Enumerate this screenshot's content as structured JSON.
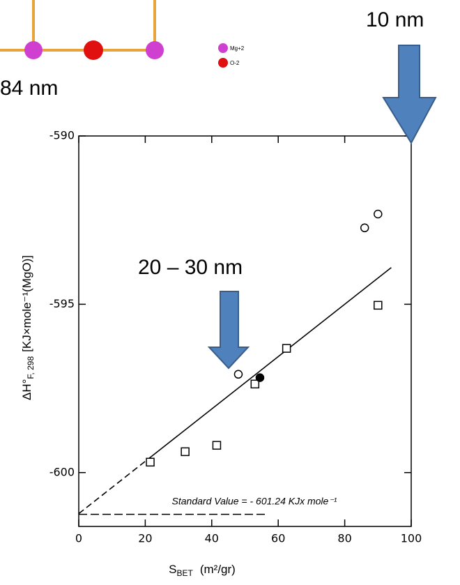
{
  "chart_data": {
    "type": "scatter",
    "xlim": [
      0,
      100
    ],
    "xticks": [
      0,
      20,
      40,
      60,
      80,
      100
    ],
    "ylim": [
      -601.6,
      -590
    ],
    "yticks": [
      -590,
      -595,
      -600
    ],
    "x_label": {
      "main": "S",
      "sub": "BET",
      "unit": "(m²/gr)"
    },
    "y_label": {
      "main": "ΔH°",
      "sub": "F, 298",
      "unit": "[KJ×mole⁻¹(MgO)]"
    },
    "series": [
      {
        "marker": "square",
        "color": "#000000",
        "x": [
          21.5,
          32,
          41.5,
          53,
          62.5,
          90
        ],
        "values": [
          -599.69,
          -599.38,
          -599.19,
          -597.37,
          -596.31,
          -595.03
        ]
      },
      {
        "marker": "circle",
        "color": "#000000",
        "x": [
          48,
          86,
          90
        ],
        "values": [
          -597.08,
          -592.73,
          -592.32
        ]
      },
      {
        "marker": "filled-circle",
        "color": "#000000",
        "x": [
          54.5
        ],
        "values": [
          -597.18
        ]
      }
    ],
    "fit_lines": [
      {
        "style": "dashed",
        "x": [
          0,
          22
        ],
        "values": [
          -601.22,
          -599.51
        ]
      },
      {
        "style": "solid",
        "x": [
          22,
          94
        ],
        "values": [
          -599.51,
          -593.91
        ]
      }
    ],
    "reference_line": {
      "value": -601.24,
      "x": [
        0,
        56
      ],
      "label": "Standard Value = - 601.24 KJx mole⁻¹"
    },
    "annotations": [
      "10 nm",
      "20 – 30 nm"
    ]
  },
  "image": {
    "label": "84 nm",
    "legend": [
      "Mg+2",
      "O-2"
    ]
  }
}
